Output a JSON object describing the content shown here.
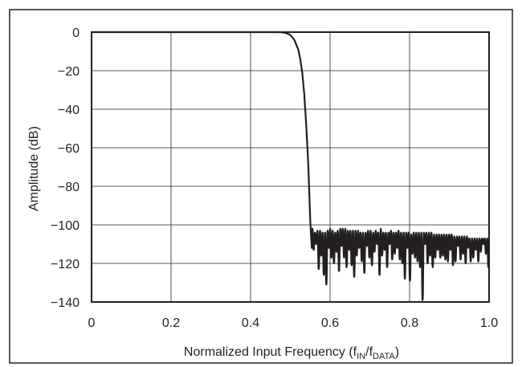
{
  "chart_data": {
    "type": "line",
    "xlabel": {
      "main": "Normalized Input Frequency (f",
      "sub1": "IN",
      "mid": "/f",
      "sub2": "DATA",
      "end": ")"
    },
    "ylabel": "Amplitude (dB)",
    "xlim": [
      0,
      1.0
    ],
    "ylim": [
      -140,
      0
    ],
    "x_ticks": [
      "0",
      "0.2",
      "0.4",
      "0.6",
      "0.8",
      "1.0"
    ],
    "y_ticks": [
      "0",
      "−20",
      "−40",
      "−60",
      "−80",
      "−100",
      "−120",
      "−140"
    ],
    "grid": true,
    "series": [
      {
        "color": "#231f20",
        "passband": {
          "x": [
            0,
            0.47
          ],
          "y": 0
        },
        "transition": {
          "x": [
            0.47,
            0.48,
            0.49,
            0.5,
            0.51,
            0.52,
            0.525,
            0.53,
            0.535,
            0.54,
            0.545,
            0.548,
            0.55,
            0.552,
            0.554
          ],
          "y": [
            0,
            -0.1,
            -0.5,
            -1.5,
            -4,
            -9,
            -14,
            -21,
            -32,
            -48,
            -68,
            -85,
            -97,
            -105,
            -112
          ]
        },
        "stopband": {
          "x_start": 0.554,
          "x_end": 1.0,
          "cycles": 70,
          "peaks": [
            -102,
            -104,
            -103,
            -103,
            -104,
            -104,
            -103,
            -102,
            -103,
            -104,
            -103,
            -102,
            -102,
            -102,
            -103,
            -103,
            -103,
            -103,
            -103,
            -104,
            -104,
            -104,
            -103,
            -103,
            -104,
            -103,
            -104,
            -102,
            -104,
            -104,
            -104,
            -103,
            -104,
            -104,
            -103,
            -104,
            -104,
            -104,
            -104,
            -105,
            -104,
            -104,
            -104,
            -104,
            -104,
            -104,
            -104,
            -104,
            -105,
            -105,
            -105,
            -105,
            -105,
            -105,
            -105,
            -105,
            -106,
            -106,
            -106,
            -106,
            -106,
            -106,
            -107,
            -107,
            -107,
            -107,
            -107,
            -107,
            -107,
            -107
          ],
          "nulls": [
            -113,
            -110,
            -123,
            -116,
            -126,
            -131,
            -112,
            -117,
            -120,
            -114,
            -124,
            -111,
            -117,
            -122,
            -113,
            -121,
            -127,
            -116,
            -112,
            -119,
            -125,
            -111,
            -117,
            -121,
            -114,
            -110,
            -126,
            -116,
            -113,
            -122,
            -110,
            -118,
            -115,
            -112,
            -118,
            -120,
            -128,
            -112,
            -129,
            -115,
            -117,
            -119,
            -122,
            -139,
            -110,
            -120,
            -116,
            -122,
            -117,
            -113,
            -117,
            -116,
            -118,
            -119,
            -113,
            -121,
            -119,
            -111,
            -118,
            -115,
            -120,
            -112,
            -119,
            -117,
            -113,
            -119,
            -114,
            -110,
            -115,
            -122
          ]
        }
      }
    ]
  }
}
